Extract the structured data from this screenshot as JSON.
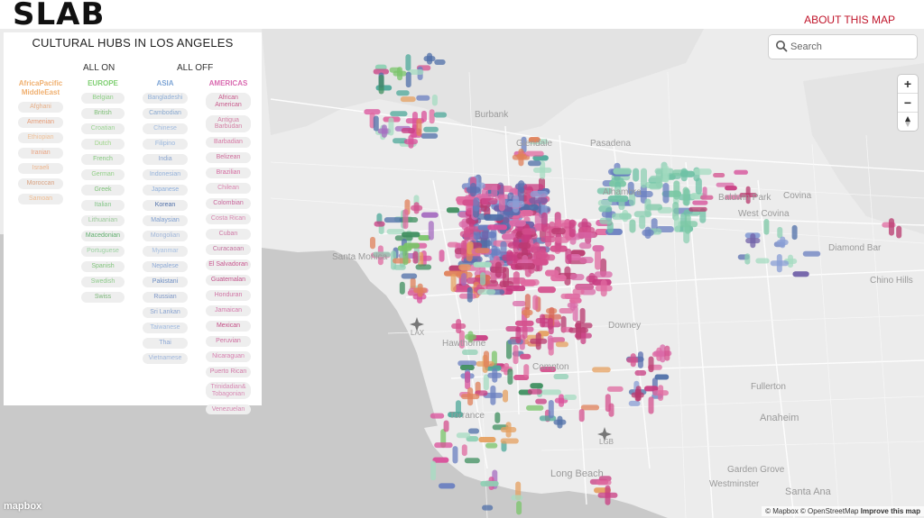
{
  "header": {
    "logo": "SLAB",
    "about_link": "ABOUT THIS MAP"
  },
  "panel": {
    "title": "CULTURAL HUBS IN LOS ANGELES",
    "all_on": "ALL ON",
    "all_off": "ALL OFF",
    "columns": [
      {
        "heading": "AfricaPacific MiddleEast",
        "color": "#f0b070",
        "items": [
          {
            "label": "Afghani",
            "color": "#e8b088"
          },
          {
            "label": "Armenian",
            "color": "#e79a74"
          },
          {
            "label": "Ethiopian",
            "color": "#f0c096"
          },
          {
            "label": "Iranian",
            "color": "#e9a584"
          },
          {
            "label": "Israeli",
            "color": "#eeb58c"
          },
          {
            "label": "Moroccan",
            "color": "#d9a07e"
          },
          {
            "label": "Samoan",
            "color": "#f0bc90"
          }
        ]
      },
      {
        "heading": "EUROPE",
        "color": "#7fcf72",
        "items": [
          {
            "label": "Belgian",
            "color": "#8ecf86"
          },
          {
            "label": "British",
            "color": "#7fbf78"
          },
          {
            "label": "Croatian",
            "color": "#9ad492"
          },
          {
            "label": "Dutch",
            "color": "#9fd58a"
          },
          {
            "label": "French",
            "color": "#84c97d"
          },
          {
            "label": "German",
            "color": "#93cf88"
          },
          {
            "label": "Greek",
            "color": "#7fc27a"
          },
          {
            "label": "Italian",
            "color": "#86c68a"
          },
          {
            "label": "Lithuanian",
            "color": "#9bc99a"
          },
          {
            "label": "Macedonian",
            "color": "#5fae6d"
          },
          {
            "label": "Portuguese",
            "color": "#9dd2a3"
          },
          {
            "label": "Spanish",
            "color": "#83c47e"
          },
          {
            "label": "Swedish",
            "color": "#8fcb8d"
          },
          {
            "label": "Swiss",
            "color": "#7cb77a"
          }
        ]
      },
      {
        "heading": "ASIA",
        "color": "#7fa6d6",
        "items": [
          {
            "label": "Bangladeshi",
            "color": "#91b0d8"
          },
          {
            "label": "Cambodian",
            "color": "#88a8cf"
          },
          {
            "label": "Chinese",
            "color": "#a2bce0"
          },
          {
            "label": "Filipino",
            "color": "#9ab7de"
          },
          {
            "label": "India",
            "color": "#8aa5cf"
          },
          {
            "label": "Indonesian",
            "color": "#93b1da"
          },
          {
            "label": "Japanese",
            "color": "#8fb0dd"
          },
          {
            "label": "Korean",
            "color": "#4f6fa8"
          },
          {
            "label": "Malaysian",
            "color": "#7f9fd0"
          },
          {
            "label": "Mongolian",
            "color": "#a0b6d8"
          },
          {
            "label": "Myanmar",
            "color": "#a7c0e2"
          },
          {
            "label": "Nepalese",
            "color": "#8eaad6"
          },
          {
            "label": "Pakistani",
            "color": "#6e8fc4"
          },
          {
            "label": "Russian",
            "color": "#7d97c7"
          },
          {
            "label": "Sri Lankan",
            "color": "#8aa4d0"
          },
          {
            "label": "Taiwanese",
            "color": "#a1bbe0"
          },
          {
            "label": "Thai",
            "color": "#8ea9d6"
          },
          {
            "label": "Vietnamese",
            "color": "#9fb6dc"
          }
        ]
      },
      {
        "heading": "AMERICAS",
        "color": "#d96ab0",
        "items": [
          {
            "label": "African American",
            "color": "#c85a8c"
          },
          {
            "label": "Antigua Barbudan",
            "color": "#d37fa4"
          },
          {
            "label": "Barbadian",
            "color": "#d77aa6"
          },
          {
            "label": "Belizean",
            "color": "#cf6e9c"
          },
          {
            "label": "Brazilian",
            "color": "#d46aa0"
          },
          {
            "label": "Chilean",
            "color": "#da86b0"
          },
          {
            "label": "Colombian",
            "color": "#c9679c"
          },
          {
            "label": "Costa Rican",
            "color": "#d886b0"
          },
          {
            "label": "Cuban",
            "color": "#cf7aa6"
          },
          {
            "label": "Curacaoan",
            "color": "#c4709e"
          },
          {
            "label": "El Salvadoran",
            "color": "#c8558e"
          },
          {
            "label": "Guatemalan",
            "color": "#c3548c"
          },
          {
            "label": "Honduran",
            "color": "#d074a4"
          },
          {
            "label": "Jamaican",
            "color": "#d478aa"
          },
          {
            "label": "Mexican",
            "color": "#c44e86"
          },
          {
            "label": "Peruvian",
            "color": "#cf6ea0"
          },
          {
            "label": "Nicaraguan",
            "color": "#d880b0"
          },
          {
            "label": "Puerto Rican",
            "color": "#d27aa8"
          },
          {
            "label": "Trinidadian& Tobagonian",
            "color": "#d88ab4"
          },
          {
            "label": "Venezuelan",
            "color": "#d487b0"
          }
        ]
      }
    ]
  },
  "search": {
    "placeholder": "Search"
  },
  "zoom": {
    "in": "+",
    "out": "−"
  },
  "places": [
    {
      "name": "Burbank",
      "id": "burbank"
    },
    {
      "name": "Glendale",
      "id": "glendale"
    },
    {
      "name": "Pasadena",
      "id": "pasadena"
    },
    {
      "name": "Alhambra",
      "id": "alhambra"
    },
    {
      "name": "Baldwin Park",
      "id": "baldwin-park"
    },
    {
      "name": "Covina",
      "id": "covina"
    },
    {
      "name": "West Covina",
      "id": "west-covina"
    },
    {
      "name": "Diamond Bar",
      "id": "diamond-bar"
    },
    {
      "name": "Chino Hills",
      "id": "chino-hills"
    },
    {
      "name": "Santa Monica",
      "id": "santa-monica"
    },
    {
      "name": "LAX",
      "id": "lax"
    },
    {
      "name": "Hawthorne",
      "id": "hawthorne"
    },
    {
      "name": "Downey",
      "id": "downey"
    },
    {
      "name": "Compton",
      "id": "compton"
    },
    {
      "name": "Fullerton",
      "id": "fullerton"
    },
    {
      "name": "Anaheim",
      "id": "anaheim"
    },
    {
      "name": "Torrance",
      "id": "torrance"
    },
    {
      "name": "LGB",
      "id": "lgb"
    },
    {
      "name": "Long Beach",
      "id": "long-beach"
    },
    {
      "name": "Garden Grove",
      "id": "garden-grove"
    },
    {
      "name": "Westminster",
      "id": "westminster"
    },
    {
      "name": "Santa Ana",
      "id": "santa-ana"
    }
  ],
  "attribution": {
    "mapbox": "mapbox",
    "text": "© Mapbox © OpenStreetMap",
    "improve": "Improve this map"
  },
  "colors": {
    "ocean": "#c9c9c9",
    "land": "#ececec",
    "accent": "#c0142a"
  }
}
